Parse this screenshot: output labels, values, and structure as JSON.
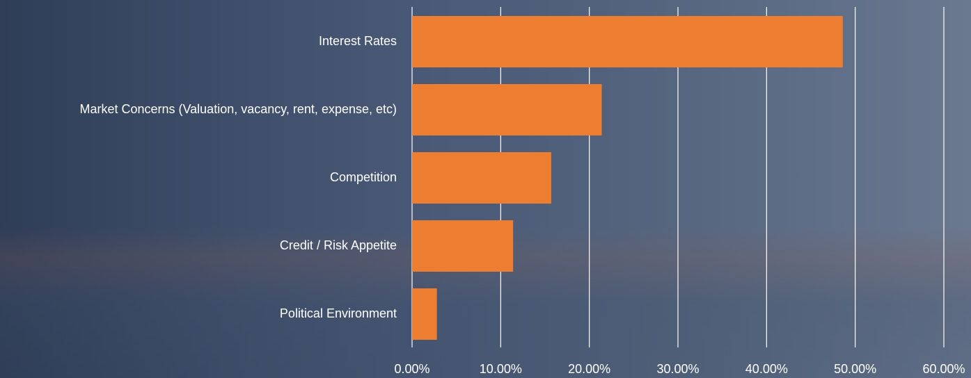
{
  "chart_data": {
    "type": "barh",
    "categories": [
      "Interest Rates",
      "Market Concerns (Valuation, vacancy, rent, expense, etc)",
      "Competition",
      "Credit / Risk Appetite",
      "Political Environment"
    ],
    "values": [
      48.6,
      21.4,
      15.7,
      11.4,
      2.8
    ],
    "color": "#ed7d31",
    "xlim": [
      0,
      60
    ],
    "xticks": [
      {
        "value": 0,
        "label": "0.00%"
      },
      {
        "value": 10,
        "label": "10.00%"
      },
      {
        "value": 20,
        "label": "20.00%"
      },
      {
        "value": 30,
        "label": "30.00%"
      },
      {
        "value": 40,
        "label": "40.00%"
      },
      {
        "value": 50,
        "label": "50.00%"
      },
      {
        "value": 60,
        "label": "60.00%"
      }
    ],
    "grid": true
  }
}
